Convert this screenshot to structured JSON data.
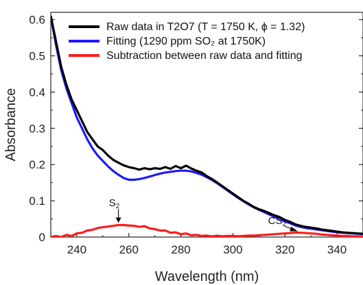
{
  "chart_data": {
    "type": "line",
    "title": "",
    "xlabel": "Wavelength (nm)",
    "ylabel": "Absorbance",
    "xlim": [
      230,
      350
    ],
    "ylim": [
      0,
      0.62
    ],
    "xticks": [
      240,
      260,
      280,
      300,
      320,
      340
    ],
    "yticks": [
      0,
      0.1,
      0.2,
      0.3,
      0.4,
      0.5,
      0.6
    ],
    "ytick_labels": [
      "0",
      "0.1",
      "0.2",
      "0.3",
      "0.4",
      "0.5",
      "0.6"
    ],
    "grid": false,
    "legend_position": "top-right",
    "series": [
      {
        "name": "Raw data in T2O7 (T = 1750 K, ϕ = 1.32)",
        "color": "#000000",
        "x": [
          230,
          232,
          234,
          236,
          238,
          240,
          242,
          244,
          246,
          248,
          250,
          252,
          254,
          256,
          258,
          260,
          262,
          264,
          266,
          268,
          270,
          272,
          274,
          276,
          278,
          280,
          282,
          284,
          286,
          288,
          290,
          292,
          294,
          296,
          298,
          300,
          302,
          304,
          306,
          308,
          310,
          312,
          314,
          316,
          318,
          320,
          322,
          324,
          326,
          328,
          330,
          332,
          334,
          336,
          338,
          340,
          342,
          344,
          346,
          348,
          350
        ],
        "y": [
          0.61,
          0.54,
          0.47,
          0.42,
          0.38,
          0.35,
          0.32,
          0.29,
          0.27,
          0.25,
          0.24,
          0.225,
          0.213,
          0.205,
          0.198,
          0.193,
          0.19,
          0.186,
          0.19,
          0.187,
          0.19,
          0.188,
          0.193,
          0.188,
          0.196,
          0.19,
          0.197,
          0.189,
          0.183,
          0.178,
          0.168,
          0.16,
          0.15,
          0.14,
          0.13,
          0.12,
          0.11,
          0.1,
          0.092,
          0.083,
          0.077,
          0.072,
          0.066,
          0.06,
          0.055,
          0.047,
          0.042,
          0.035,
          0.031,
          0.028,
          0.026,
          0.024,
          0.021,
          0.019,
          0.017,
          0.015,
          0.013,
          0.012,
          0.011,
          0.01,
          0.009
        ]
      },
      {
        "name": "Fitting (1290 ppm SO₂ at 1750K)",
        "color": "#1a1aff",
        "x": [
          230,
          232,
          234,
          236,
          238,
          240,
          242,
          244,
          246,
          248,
          250,
          252,
          254,
          256,
          258,
          260,
          262,
          264,
          266,
          268,
          270,
          272,
          274,
          276,
          278,
          280,
          282,
          284,
          286,
          288,
          290,
          292,
          294,
          296,
          298,
          300,
          302,
          304,
          306,
          308,
          310,
          312,
          314,
          316,
          318,
          320,
          322,
          324,
          326,
          328,
          330,
          332,
          334,
          336,
          338,
          340,
          342,
          344,
          346,
          348,
          350
        ],
        "y": [
          0.61,
          0.53,
          0.46,
          0.41,
          0.37,
          0.33,
          0.3,
          0.27,
          0.245,
          0.225,
          0.21,
          0.195,
          0.182,
          0.172,
          0.163,
          0.158,
          0.158,
          0.16,
          0.163,
          0.167,
          0.171,
          0.175,
          0.178,
          0.18,
          0.182,
          0.183,
          0.183,
          0.181,
          0.177,
          0.172,
          0.165,
          0.157,
          0.148,
          0.138,
          0.128,
          0.118,
          0.108,
          0.099,
          0.09,
          0.082,
          0.075,
          0.069,
          0.062,
          0.056,
          0.05,
          0.043,
          0.038,
          0.032,
          0.028,
          0.025,
          0.023,
          0.021,
          0.019,
          0.017,
          0.015,
          0.013,
          0.012,
          0.011,
          0.01,
          0.009,
          0.008
        ]
      },
      {
        "name": "Subtraction between raw data and fitting",
        "color": "#ff1a1a",
        "x": [
          230,
          232,
          234,
          236,
          238,
          240,
          242,
          244,
          246,
          248,
          250,
          252,
          254,
          256,
          258,
          260,
          262,
          264,
          266,
          268,
          270,
          272,
          274,
          276,
          278,
          280,
          282,
          284,
          286,
          288,
          290,
          292,
          294,
          296,
          298,
          300,
          302,
          304,
          306,
          308,
          310,
          312,
          314,
          316,
          318,
          320,
          322,
          324,
          326,
          328,
          330,
          332,
          334,
          336,
          338,
          340,
          342,
          344,
          346,
          348,
          350
        ],
        "y": [
          0.0,
          0.003,
          0.0,
          0.006,
          0.003,
          0.01,
          0.012,
          0.018,
          0.02,
          0.025,
          0.027,
          0.029,
          0.031,
          0.033,
          0.033,
          0.032,
          0.031,
          0.028,
          0.03,
          0.024,
          0.022,
          0.018,
          0.018,
          0.012,
          0.013,
          0.008,
          0.01,
          0.005,
          0.006,
          0.003,
          0.004,
          0.002,
          0.004,
          0.002,
          0.003,
          0.003,
          0.002,
          0.003,
          0.004,
          0.004,
          0.005,
          0.006,
          0.007,
          0.008,
          0.009,
          0.01,
          0.011,
          0.012,
          0.012,
          0.011,
          0.01,
          0.009,
          0.007,
          0.006,
          0.005,
          0.004,
          0.003,
          0.003,
          0.002,
          0.002,
          0.001
        ]
      }
    ],
    "annotations": [
      {
        "text": "S",
        "sub": "2",
        "x": 256,
        "y": 0.035
      },
      {
        "text": "CS",
        "sub": "2",
        "x": 325,
        "y": 0.014
      }
    ]
  }
}
